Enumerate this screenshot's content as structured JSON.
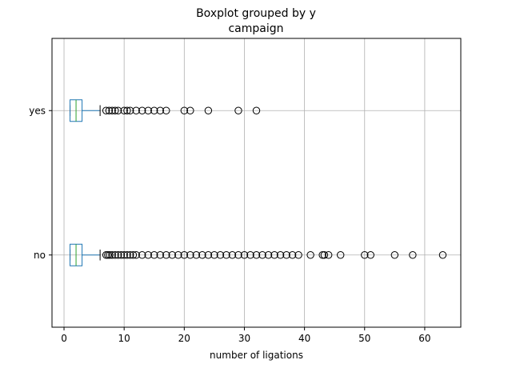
{
  "chart_data": {
    "type": "boxplot",
    "title": "Boxplot grouped by y",
    "subtitle": "campaign",
    "xlabel": "number of ligations",
    "ylabel": "",
    "xlim": [
      -2,
      66
    ],
    "xticks": [
      0,
      10,
      20,
      30,
      40,
      50,
      60
    ],
    "grid": true,
    "orientation": "horizontal",
    "colors": {
      "box": "#1f77b4",
      "median": "#2ca02c",
      "grid": "#b0b0b0",
      "whisker": "#000000"
    },
    "categories": [
      "no",
      "yes"
    ],
    "series": [
      {
        "category": "no",
        "whisker_low": 1,
        "q1": 1,
        "median": 2,
        "q3": 3,
        "whisker_high": 6,
        "outliers": [
          7,
          7.3,
          7.6,
          8,
          8.5,
          9,
          9.5,
          10,
          10.5,
          11,
          11.5,
          12,
          13,
          14,
          15,
          16,
          17,
          18,
          19,
          20,
          21,
          22,
          23,
          24,
          25,
          26,
          27,
          28,
          29,
          30,
          31,
          32,
          33,
          34,
          35,
          36,
          37,
          38,
          39,
          41,
          43,
          43.3,
          44,
          46,
          50,
          51,
          55,
          58,
          63
        ]
      },
      {
        "category": "yes",
        "whisker_low": 1,
        "q1": 1,
        "median": 2,
        "q3": 3,
        "whisker_high": 6,
        "outliers": [
          7,
          7.5,
          8,
          8.5,
          9,
          10,
          10.5,
          11,
          12,
          13,
          14,
          15,
          16,
          17,
          20,
          21,
          24,
          29,
          32
        ]
      }
    ]
  }
}
